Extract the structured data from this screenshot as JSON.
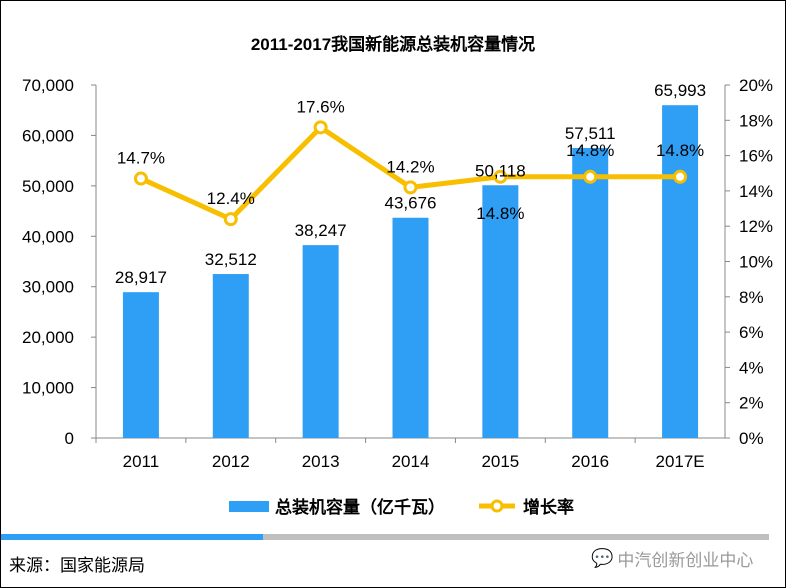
{
  "chart_data": {
    "type": "bar+line",
    "title": "2011-2017我国新能源总装机容量情况",
    "categories": [
      "2011",
      "2012",
      "2013",
      "2014",
      "2015",
      "2016",
      "2017E"
    ],
    "series": [
      {
        "name": "总装机容量（亿千瓦）",
        "type": "bar",
        "axis": "left",
        "color": "#2f9ff5",
        "values": [
          28917,
          32512,
          38247,
          43676,
          50118,
          57511,
          65993
        ],
        "labels": [
          "28,917",
          "32,512",
          "38,247",
          "43,676",
          "50,118",
          "57,511",
          "65,993"
        ]
      },
      {
        "name": "增长率",
        "type": "line",
        "axis": "right",
        "color": "#f8bf00",
        "values": [
          14.7,
          12.4,
          17.6,
          14.2,
          14.8,
          14.8,
          14.8
        ],
        "labels": [
          "14.7%",
          "12.4%",
          "17.6%",
          "14.2%",
          "14.8%",
          "14.8%",
          "14.8%"
        ]
      }
    ],
    "y_left": {
      "ylim": [
        0,
        70000
      ],
      "ticks": [
        "0",
        "10,000",
        "20,000",
        "30,000",
        "40,000",
        "50,000",
        "60,000",
        "70,000"
      ]
    },
    "y_right": {
      "ylim": [
        0,
        20
      ],
      "ticks": [
        "0%",
        "2%",
        "4%",
        "6%",
        "8%",
        "10%",
        "12%",
        "14%",
        "16%",
        "18%",
        "20%"
      ]
    },
    "grid": false,
    "legend": "bottom"
  },
  "footer": {
    "source": "来源：国家能源局",
    "brand": "中汽创新创业中心",
    "accent": "#2f9ff5"
  }
}
